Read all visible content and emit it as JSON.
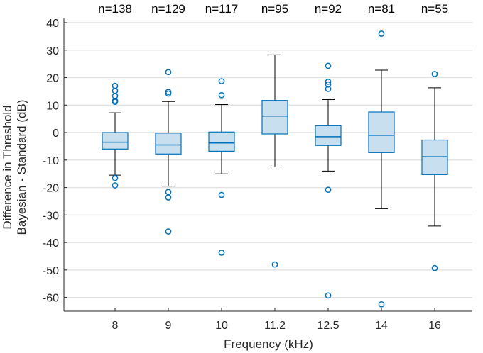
{
  "chart_data": {
    "type": "box",
    "xlabel": "Frequency (kHz)",
    "ylabel": [
      "Difference in Threshold",
      "Bayesian - Standard (dB)"
    ],
    "ylim": [
      -65,
      40
    ],
    "yticks": [
      40,
      30,
      20,
      10,
      0,
      -10,
      -20,
      -30,
      -40,
      -50,
      -60
    ],
    "grid": "horizontal",
    "box_color": "#0072BD",
    "box_fill": "#C8DFF0",
    "categories": [
      "8",
      "9",
      "10",
      "11.2",
      "12.5",
      "14",
      "16"
    ],
    "n_labels": [
      "n=138",
      "n=129",
      "n=117",
      "n=95",
      "n=92",
      "n=81",
      "n=55"
    ],
    "boxes": [
      {
        "whisker_low": -15.5,
        "q1": -6,
        "median": -3.5,
        "q3": 0,
        "whisker_high": 7.2,
        "outliers": [
          17,
          15.2,
          13.3,
          11.6,
          11.2,
          -16.5,
          -19.2
        ]
      },
      {
        "whisker_low": -19.5,
        "q1": -7.8,
        "median": -4.5,
        "q3": -0.2,
        "whisker_high": 11.3,
        "outliers": [
          22,
          14.8,
          14.2,
          -21.6,
          -23.6,
          -36
        ]
      },
      {
        "whisker_low": -15,
        "q1": -6.8,
        "median": -3.8,
        "q3": 0.2,
        "whisker_high": 10.2,
        "outliers": [
          18.7,
          13.6,
          -22.7,
          -43.7
        ]
      },
      {
        "whisker_low": -12.5,
        "q1": -0.5,
        "median": 6,
        "q3": 11.7,
        "whisker_high": 28.3,
        "outliers": [
          -48
        ]
      },
      {
        "whisker_low": -14,
        "q1": -4.7,
        "median": -1.5,
        "q3": 2.5,
        "whisker_high": 12,
        "outliers": [
          24.3,
          18.5,
          17.5,
          15.9,
          -20.8,
          -59.3
        ]
      },
      {
        "whisker_low": -27.7,
        "q1": -7.3,
        "median": -1,
        "q3": 7.5,
        "whisker_high": 22.7,
        "outliers": [
          36,
          -62.5
        ]
      },
      {
        "whisker_low": -34,
        "q1": -15.3,
        "median": -8.8,
        "q3": -2.7,
        "whisker_high": 16.3,
        "outliers": [
          21.3,
          -49.3
        ]
      }
    ]
  }
}
